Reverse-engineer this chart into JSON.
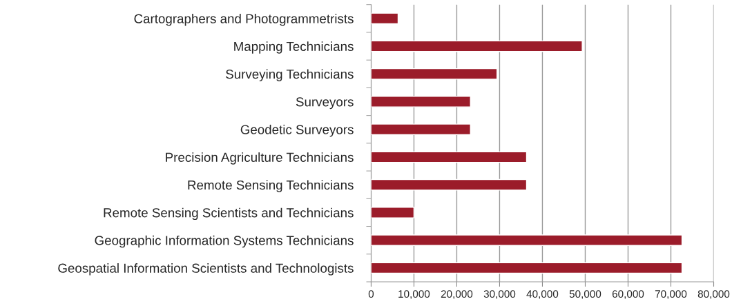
{
  "chart_data": {
    "type": "bar",
    "orientation": "horizontal",
    "categories": [
      "Cartographers and Photogrammetrists",
      "Mapping Technicians",
      "Surveying Technicians",
      "Surveyors",
      "Geodetic Surveyors",
      "Precision Agriculture Technicians",
      "Remote Sensing Technicians",
      "Remote Sensing Scientists and Technicians",
      "Geographic Information Systems Technicians",
      "Geospatial Information Scientists and Technologists"
    ],
    "values": [
      6300,
      49300,
      29400,
      23200,
      23200,
      36300,
      36300,
      10000,
      72600,
      72600
    ],
    "color": "#9b1c2a",
    "xlim": [
      0,
      80000
    ],
    "xticks": [
      0,
      {
        "value": 10000,
        "label": "10,000"
      },
      {
        "value": 20000,
        "label": "20,000"
      },
      {
        "value": 30000,
        "label": "30,000"
      },
      {
        "value": 40000,
        "label": "40,000"
      },
      {
        "value": 50000,
        "label": "50,000"
      },
      {
        "value": 60000,
        "label": "60,000"
      },
      {
        "value": 70000,
        "label": "70,000"
      },
      {
        "value": 80000,
        "label": "80,000"
      }
    ],
    "grid": "x",
    "legend": false
  }
}
